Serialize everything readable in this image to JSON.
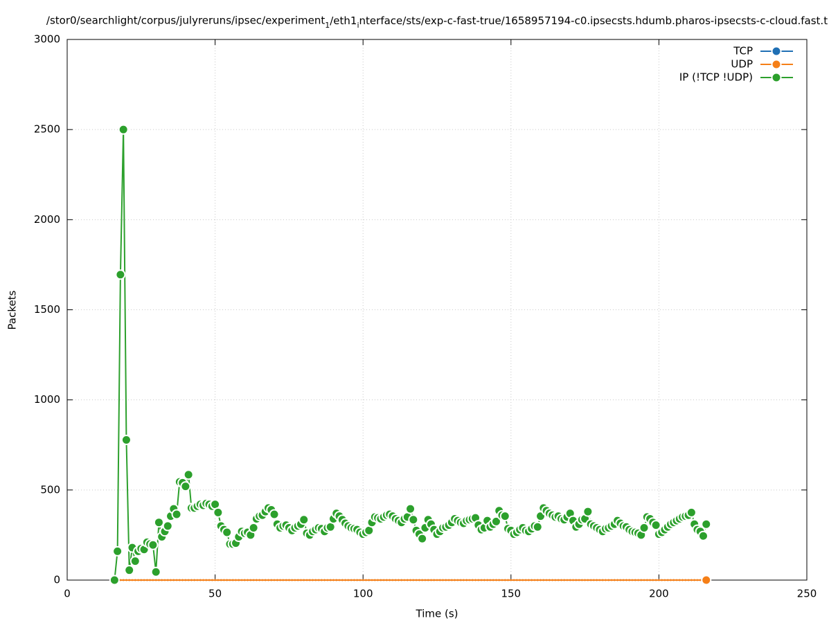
{
  "chart_data": {
    "type": "line",
    "title": "/stor0/searchlight/corpus/julyreruns/ipsec/experiment_1/eth1_interface/sts/exp-c-fast-true/1658957194-c0.ipsecsts.hdumb.pharos-ipsecsts-c-cloud.fast.t",
    "xlabel": "Time (s)",
    "ylabel": "Packets",
    "xlim": [
      0,
      250
    ],
    "xticks": [
      0,
      50,
      100,
      150,
      200,
      250
    ],
    "ylim": [
      0,
      3000
    ],
    "yticks": [
      0,
      500,
      1000,
      1500,
      2000,
      2500,
      3000
    ],
    "grid": true,
    "legend": "top-right",
    "x": [
      16,
      17,
      18,
      19,
      20,
      21,
      22,
      23,
      24,
      25,
      26,
      27,
      28,
      29,
      30,
      31,
      32,
      33,
      34,
      35,
      36,
      37,
      38,
      39,
      40,
      41,
      42,
      43,
      44,
      45,
      46,
      47,
      48,
      49,
      50,
      51,
      52,
      53,
      54,
      55,
      56,
      57,
      58,
      59,
      60,
      61,
      62,
      63,
      64,
      65,
      66,
      67,
      68,
      69,
      70,
      71,
      72,
      73,
      74,
      75,
      76,
      77,
      78,
      79,
      80,
      81,
      82,
      83,
      84,
      85,
      86,
      87,
      88,
      89,
      90,
      91,
      92,
      93,
      94,
      95,
      96,
      97,
      98,
      99,
      100,
      101,
      102,
      103,
      104,
      105,
      106,
      107,
      108,
      109,
      110,
      111,
      112,
      113,
      114,
      115,
      116,
      117,
      118,
      119,
      120,
      121,
      122,
      123,
      124,
      125,
      126,
      127,
      128,
      129,
      130,
      131,
      132,
      133,
      134,
      135,
      136,
      137,
      138,
      139,
      140,
      141,
      142,
      143,
      144,
      145,
      146,
      147,
      148,
      149,
      150,
      151,
      152,
      153,
      154,
      155,
      156,
      157,
      158,
      159,
      160,
      161,
      162,
      163,
      164,
      165,
      166,
      167,
      168,
      169,
      170,
      171,
      172,
      173,
      174,
      175,
      176,
      177,
      178,
      179,
      180,
      181,
      182,
      183,
      184,
      185,
      186,
      187,
      188,
      189,
      190,
      191,
      192,
      193,
      194,
      195,
      196,
      197,
      198,
      199,
      200,
      201,
      202,
      203,
      204,
      205,
      206,
      207,
      208,
      209,
      210,
      211,
      212,
      213,
      214,
      215,
      216
    ],
    "series": [
      {
        "name": "TCP",
        "color": "#1f6fb4",
        "values": [
          0,
          0,
          0,
          0,
          0,
          0,
          0,
          0,
          0,
          0,
          0,
          0,
          0,
          0,
          0,
          0,
          0,
          0,
          0,
          0,
          0,
          0,
          0,
          0,
          0,
          0,
          0,
          0,
          0,
          0,
          0,
          0,
          0,
          0,
          0,
          0,
          0,
          0,
          0,
          0,
          0,
          0,
          0,
          0,
          0,
          0,
          0,
          0,
          0,
          0,
          0,
          0,
          0,
          0,
          0,
          0,
          0,
          0,
          0,
          0,
          0,
          0,
          0,
          0,
          0,
          0,
          0,
          0,
          0,
          0,
          0,
          0,
          0,
          0,
          0,
          0,
          0,
          0,
          0,
          0,
          0,
          0,
          0,
          0,
          0,
          0,
          0,
          0,
          0,
          0,
          0,
          0,
          0,
          0,
          0,
          0,
          0,
          0,
          0,
          0,
          0,
          0,
          0,
          0,
          0,
          0,
          0,
          0,
          0,
          0,
          0,
          0,
          0,
          0,
          0,
          0,
          0,
          0,
          0,
          0,
          0,
          0,
          0,
          0,
          0,
          0,
          0,
          0,
          0,
          0,
          0,
          0,
          0,
          0,
          0,
          0,
          0,
          0,
          0,
          0,
          0,
          0,
          0,
          0,
          0,
          0,
          0,
          0,
          0,
          0,
          0,
          0,
          0,
          0,
          0,
          0,
          0,
          0,
          0,
          0,
          0,
          0,
          0,
          0,
          0,
          0,
          0,
          0,
          0,
          0,
          0,
          0,
          0,
          0,
          0,
          0,
          0,
          0,
          0,
          0,
          0,
          0,
          0,
          0,
          0,
          0,
          0,
          0,
          0,
          0,
          0,
          0,
          0,
          0,
          0,
          0,
          0,
          0,
          0,
          0,
          0
        ]
      },
      {
        "name": "UDP",
        "color": "#f57f17",
        "values": [
          0,
          0,
          0,
          0,
          0,
          0,
          0,
          0,
          0,
          0,
          0,
          0,
          0,
          0,
          0,
          0,
          0,
          0,
          0,
          0,
          0,
          0,
          0,
          0,
          0,
          0,
          0,
          0,
          0,
          0,
          0,
          0,
          0,
          0,
          0,
          0,
          0,
          0,
          0,
          0,
          0,
          0,
          0,
          0,
          0,
          0,
          0,
          0,
          0,
          0,
          0,
          0,
          0,
          0,
          0,
          0,
          0,
          0,
          0,
          0,
          0,
          0,
          0,
          0,
          0,
          0,
          0,
          0,
          0,
          0,
          0,
          0,
          0,
          0,
          0,
          0,
          0,
          0,
          0,
          0,
          0,
          0,
          0,
          0,
          0,
          0,
          0,
          0,
          0,
          0,
          0,
          0,
          0,
          0,
          0,
          0,
          0,
          0,
          0,
          0,
          0,
          0,
          0,
          0,
          0,
          0,
          0,
          0,
          0,
          0,
          0,
          0,
          0,
          0,
          0,
          0,
          0,
          0,
          0,
          0,
          0,
          0,
          0,
          0,
          0,
          0,
          0,
          0,
          0,
          0,
          0,
          0,
          0,
          0,
          0,
          0,
          0,
          0,
          0,
          0,
          0,
          0,
          0,
          0,
          0,
          0,
          0,
          0,
          0,
          0,
          0,
          0,
          0,
          0,
          0,
          0,
          0,
          0,
          0,
          0,
          0,
          0,
          0,
          0,
          0,
          0,
          0,
          0,
          0,
          0,
          0,
          0,
          0,
          0,
          0,
          0,
          0,
          0,
          0,
          0,
          0,
          0,
          0,
          0,
          0,
          0,
          0,
          0,
          0,
          0,
          0,
          0,
          0,
          0,
          0,
          0,
          0,
          0,
          0,
          0,
          0
        ]
      },
      {
        "name": "IP (!TCP  !UDP)",
        "color": "#2ca02c",
        "values": [
          0,
          160,
          1695,
          2500,
          778,
          55,
          180,
          105,
          160,
          175,
          170,
          210,
          200,
          195,
          45,
          320,
          240,
          270,
          300,
          355,
          395,
          365,
          545,
          540,
          520,
          585,
          400,
          400,
          410,
          420,
          415,
          425,
          420,
          410,
          420,
          375,
          300,
          280,
          265,
          200,
          200,
          205,
          240,
          270,
          260,
          265,
          250,
          290,
          340,
          355,
          360,
          380,
          400,
          390,
          365,
          310,
          290,
          300,
          305,
          290,
          275,
          290,
          300,
          310,
          335,
          260,
          250,
          270,
          280,
          290,
          285,
          270,
          290,
          295,
          340,
          370,
          355,
          335,
          315,
          300,
          290,
          285,
          280,
          265,
          255,
          265,
          275,
          320,
          350,
          345,
          340,
          350,
          360,
          365,
          355,
          340,
          330,
          320,
          340,
          350,
          395,
          335,
          275,
          255,
          230,
          290,
          335,
          310,
          280,
          255,
          270,
          290,
          295,
          305,
          320,
          340,
          330,
          320,
          315,
          330,
          335,
          340,
          345,
          305,
          280,
          290,
          330,
          295,
          310,
          325,
          385,
          360,
          355,
          285,
          275,
          255,
          265,
          280,
          290,
          275,
          270,
          285,
          300,
          295,
          355,
          400,
          385,
          370,
          360,
          350,
          355,
          340,
          335,
          350,
          370,
          330,
          295,
          310,
          335,
          340,
          380,
          310,
          300,
          290,
          280,
          270,
          285,
          290,
          300,
          310,
          330,
          315,
          300,
          295,
          280,
          270,
          265,
          260,
          250,
          290,
          350,
          340,
          320,
          305,
          255,
          265,
          280,
          295,
          310,
          320,
          330,
          340,
          350,
          355,
          360,
          375,
          310,
          280,
          270,
          245,
          310
        ]
      }
    ]
  }
}
